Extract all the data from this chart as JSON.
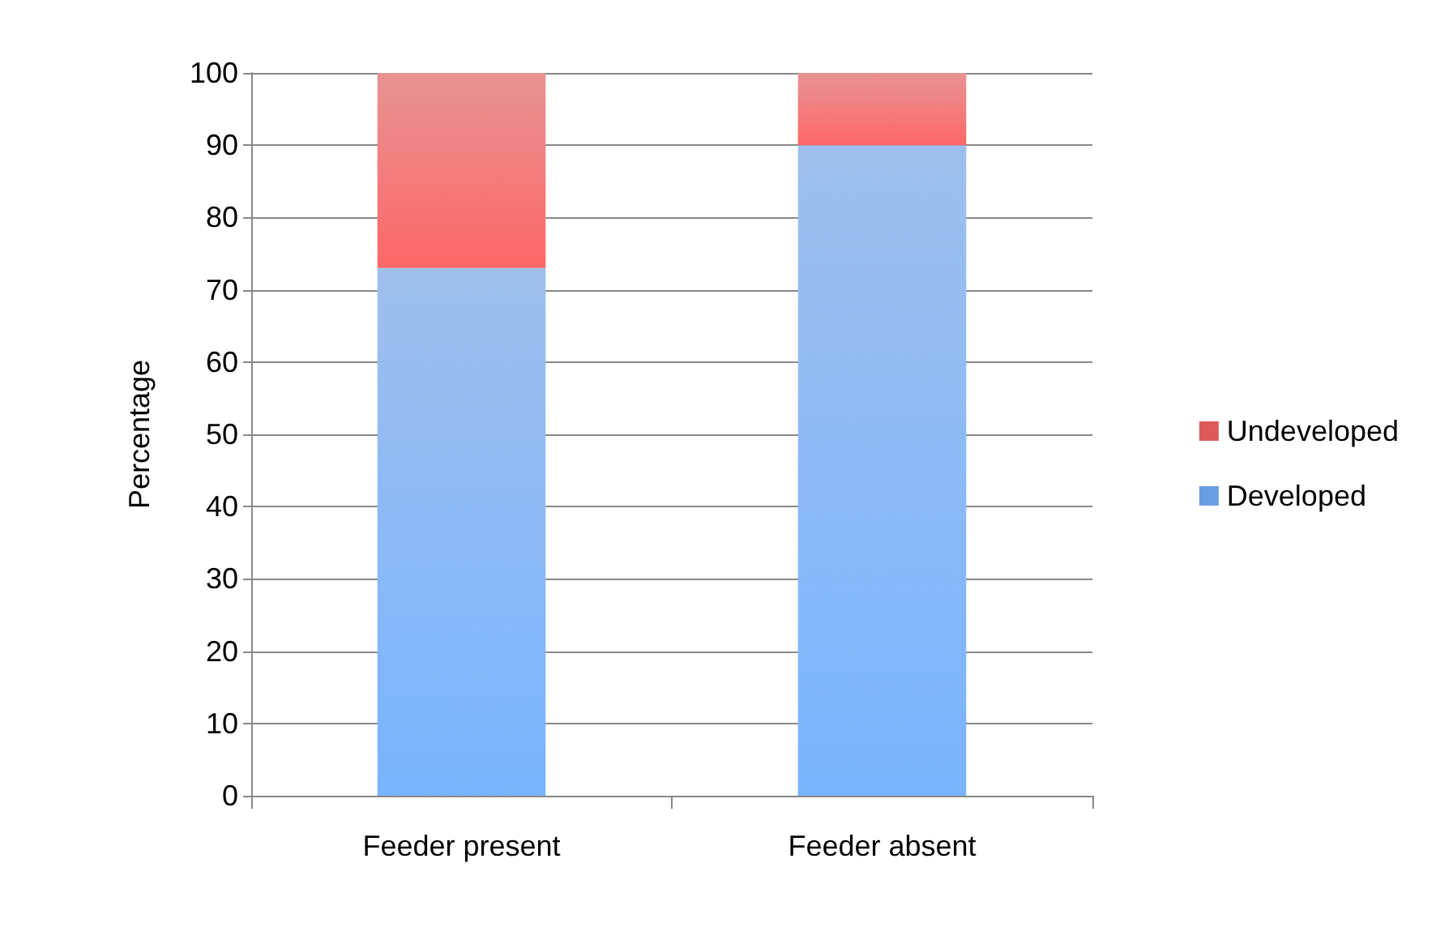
{
  "chart_data": {
    "type": "bar",
    "stacked": true,
    "ylabel": "Percentage",
    "categories": [
      "Feeder present",
      "Feeder absent"
    ],
    "series": [
      {
        "name": "Developed",
        "color": "#6a9de3",
        "values": [
          73,
          90
        ]
      },
      {
        "name": "Undeveloped",
        "color": "#dd5a5a",
        "values": [
          27,
          10
        ]
      }
    ],
    "ylim": [
      0,
      100
    ],
    "yticks": [
      0,
      10,
      20,
      30,
      40,
      50,
      60,
      70,
      80,
      90,
      100
    ],
    "grid": "y",
    "legend": "right"
  }
}
